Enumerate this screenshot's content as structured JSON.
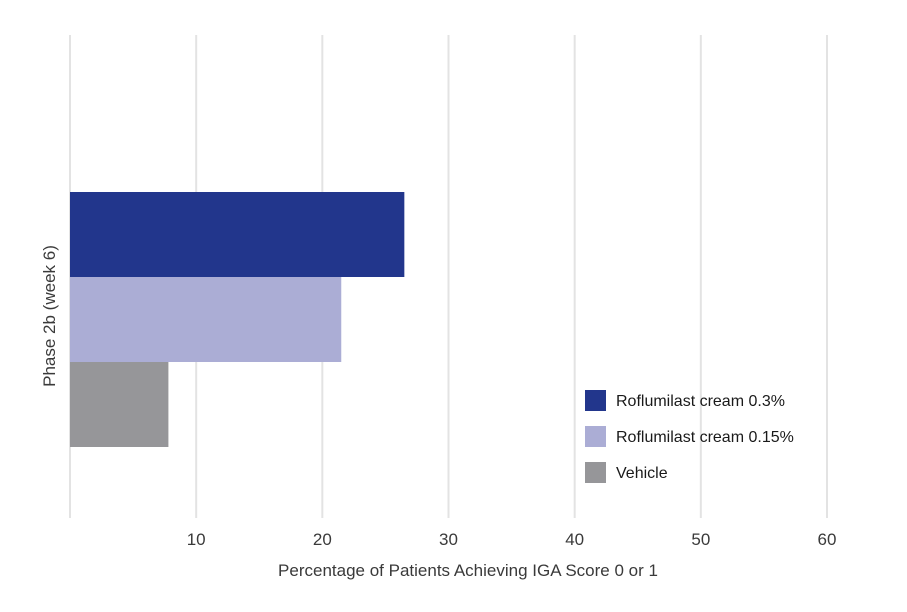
{
  "chart_data": {
    "type": "bar",
    "orientation": "horizontal",
    "categories": [
      "Phase 2b (week 6)"
    ],
    "series": [
      {
        "name": "Roflumilast cream 0.3%",
        "values": [
          26.5
        ],
        "color": "#22368C"
      },
      {
        "name": "Roflumilast cream 0.15%",
        "values": [
          21.5
        ],
        "color": "#ABADD5"
      },
      {
        "name": "Vehicle",
        "values": [
          7.8
        ],
        "color": "#969699"
      }
    ],
    "xlabel": "Percentage of Patients  Achieving  IGA Score 0 or 1",
    "ylabel": "",
    "xlim": [
      0,
      60
    ],
    "xticks": [
      10,
      20,
      30,
      40,
      50,
      60
    ],
    "grid": true,
    "legend_position": "bottom-right"
  }
}
